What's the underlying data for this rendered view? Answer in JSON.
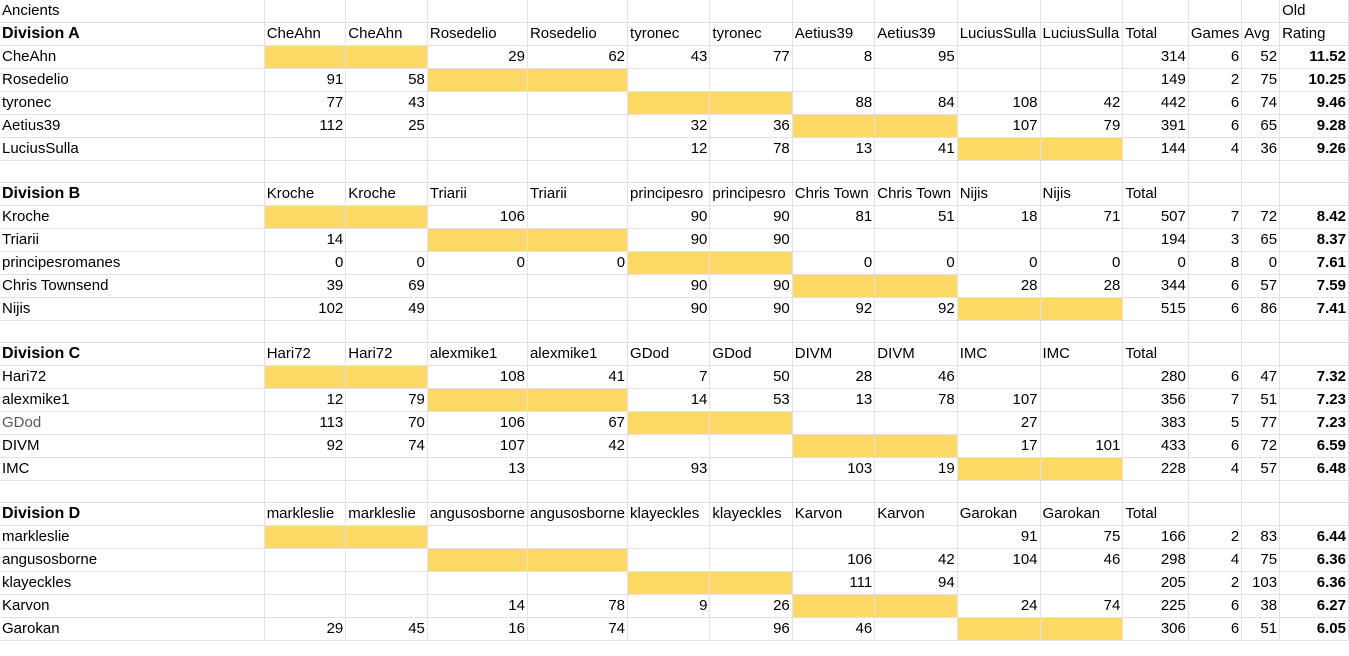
{
  "sheet": {
    "title": "Ancients",
    "old_header": "Old",
    "rating_header": "Rating",
    "total_header": "Total",
    "games_header": "Games",
    "avg_header": "Avg",
    "highlight_color": "#ffd966",
    "divisions": [
      {
        "name": "Division A",
        "headers": [
          "CheAhn",
          "CheAhn",
          "Rosedelio",
          "Rosedelio",
          "tyronec",
          "tyronec",
          "Aetius39",
          "Aetius39",
          "LuciusSulla",
          "LuciusSulla"
        ],
        "rows": [
          {
            "name": "CheAhn",
            "cells": [
              "",
              "",
              "29",
              "62",
              "43",
              "77",
              "8",
              "95",
              "",
              ""
            ],
            "total": "314",
            "games": "6",
            "avg": "52",
            "rating": "11.52"
          },
          {
            "name": "Rosedelio",
            "cells": [
              "91",
              "58",
              "",
              "",
              "",
              "",
              "",
              "",
              "",
              ""
            ],
            "total": "149",
            "games": "2",
            "avg": "75",
            "rating": "10.25"
          },
          {
            "name": "tyronec",
            "cells": [
              "77",
              "43",
              "",
              "",
              "",
              "",
              "88",
              "84",
              "108",
              "42"
            ],
            "total": "442",
            "games": "6",
            "avg": "74",
            "rating": "9.46"
          },
          {
            "name": "Aetius39",
            "cells": [
              "112",
              "25",
              "",
              "",
              "32",
              "36",
              "",
              "",
              "107",
              "79"
            ],
            "total": "391",
            "games": "6",
            "avg": "65",
            "rating": "9.28"
          },
          {
            "name": "LuciusSulla",
            "cells": [
              "",
              "",
              "",
              "",
              "12",
              "78",
              "13",
              "41",
              "",
              ""
            ],
            "total": "144",
            "games": "4",
            "avg": "36",
            "rating": "9.26"
          }
        ]
      },
      {
        "name": "Division B",
        "headers": [
          "Kroche",
          "Kroche",
          "Triarii",
          "Triarii",
          "principesro",
          "principesro",
          "Chris Town",
          "Chris Town",
          "Nijis",
          "Nijis"
        ],
        "rows": [
          {
            "name": "Kroche",
            "cells": [
              "",
              "",
              "106",
              "",
              "90",
              "90",
              "81",
              "51",
              "18",
              "71"
            ],
            "total": "507",
            "games": "7",
            "avg": "72",
            "rating": "8.42"
          },
          {
            "name": "Triarii",
            "cells": [
              "14",
              "",
              "",
              "",
              "90",
              "90",
              "",
              "",
              "",
              ""
            ],
            "total": "194",
            "games": "3",
            "avg": "65",
            "rating": "8.37"
          },
          {
            "name": "principesromanes",
            "cells": [
              "0",
              "0",
              "0",
              "0",
              "",
              "",
              "0",
              "0",
              "0",
              "0"
            ],
            "total": "0",
            "games": "8",
            "avg": "0",
            "rating": "7.61"
          },
          {
            "name": "Chris Townsend",
            "cells": [
              "39",
              "69",
              "",
              "",
              "90",
              "90",
              "",
              "",
              "28",
              "28"
            ],
            "total": "344",
            "games": "6",
            "avg": "57",
            "rating": "7.59"
          },
          {
            "name": "Nijis",
            "cells": [
              "102",
              "49",
              "",
              "",
              "90",
              "90",
              "92",
              "92",
              "",
              ""
            ],
            "total": "515",
            "games": "6",
            "avg": "86",
            "rating": "7.41"
          }
        ]
      },
      {
        "name": "Division C",
        "headers": [
          "Hari72",
          "Hari72",
          "alexmike1",
          "alexmike1",
          "GDod",
          "GDod",
          "DIVM",
          "DIVM",
          "IMC",
          "IMC"
        ],
        "rows": [
          {
            "name": "Hari72",
            "cells": [
              "",
              "",
              "108",
              "41",
              "7",
              "50",
              "28",
              "46",
              "",
              ""
            ],
            "total": "280",
            "games": "6",
            "avg": "47",
            "rating": "7.32"
          },
          {
            "name": "alexmike1",
            "cells": [
              "12",
              "79",
              "",
              "",
              "14",
              "53",
              "13",
              "78",
              "107",
              ""
            ],
            "total": "356",
            "games": "7",
            "avg": "51",
            "rating": "7.23"
          },
          {
            "name": "GDod",
            "cells": [
              "113",
              "70",
              "106",
              "67",
              "",
              "",
              "",
              "",
              "27",
              ""
            ],
            "total": "383",
            "games": "5",
            "avg": "77",
            "rating": "7.23"
          },
          {
            "name": "DIVM",
            "cells": [
              "92",
              "74",
              "107",
              "42",
              "",
              "",
              "",
              "",
              "17",
              "101"
            ],
            "total": "433",
            "games": "6",
            "avg": "72",
            "rating": "6.59"
          },
          {
            "name": "IMC",
            "cells": [
              "",
              "",
              "13",
              "",
              "93",
              "",
              "103",
              "19",
              "",
              ""
            ],
            "total": "228",
            "games": "4",
            "avg": "57",
            "rating": "6.48"
          }
        ]
      },
      {
        "name": "Division D",
        "headers": [
          "markleslie",
          "markleslie",
          "angusosborne",
          "angusosborne",
          "klayeckles",
          "klayeckles",
          "Karvon",
          "Karvon",
          "Garokan",
          "Garokan"
        ],
        "rows": [
          {
            "name": "markleslie",
            "cells": [
              "",
              "",
              "",
              "",
              "",
              "",
              "",
              "",
              "91",
              "75"
            ],
            "total": "166",
            "games": "2",
            "avg": "83",
            "rating": "6.44"
          },
          {
            "name": "angusosborne",
            "cells": [
              "",
              "",
              "",
              "",
              "",
              "",
              "106",
              "42",
              "104",
              "46"
            ],
            "total": "298",
            "games": "4",
            "avg": "75",
            "rating": "6.36"
          },
          {
            "name": "klayeckles",
            "cells": [
              "",
              "",
              "",
              "",
              "",
              "",
              "111",
              "94",
              "",
              ""
            ],
            "total": "205",
            "games": "2",
            "avg": "103",
            "rating": "6.36"
          },
          {
            "name": "Karvon",
            "cells": [
              "",
              "",
              "14",
              "78",
              "9",
              "26",
              "",
              "",
              "24",
              "74"
            ],
            "total": "225",
            "games": "6",
            "avg": "38",
            "rating": "6.27"
          },
          {
            "name": "Garokan",
            "cells": [
              "29",
              "45",
              "16",
              "74",
              "",
              "96",
              "46",
              "",
              "",
              ""
            ],
            "total": "306",
            "games": "6",
            "avg": "51",
            "rating": "6.05"
          }
        ]
      }
    ]
  }
}
